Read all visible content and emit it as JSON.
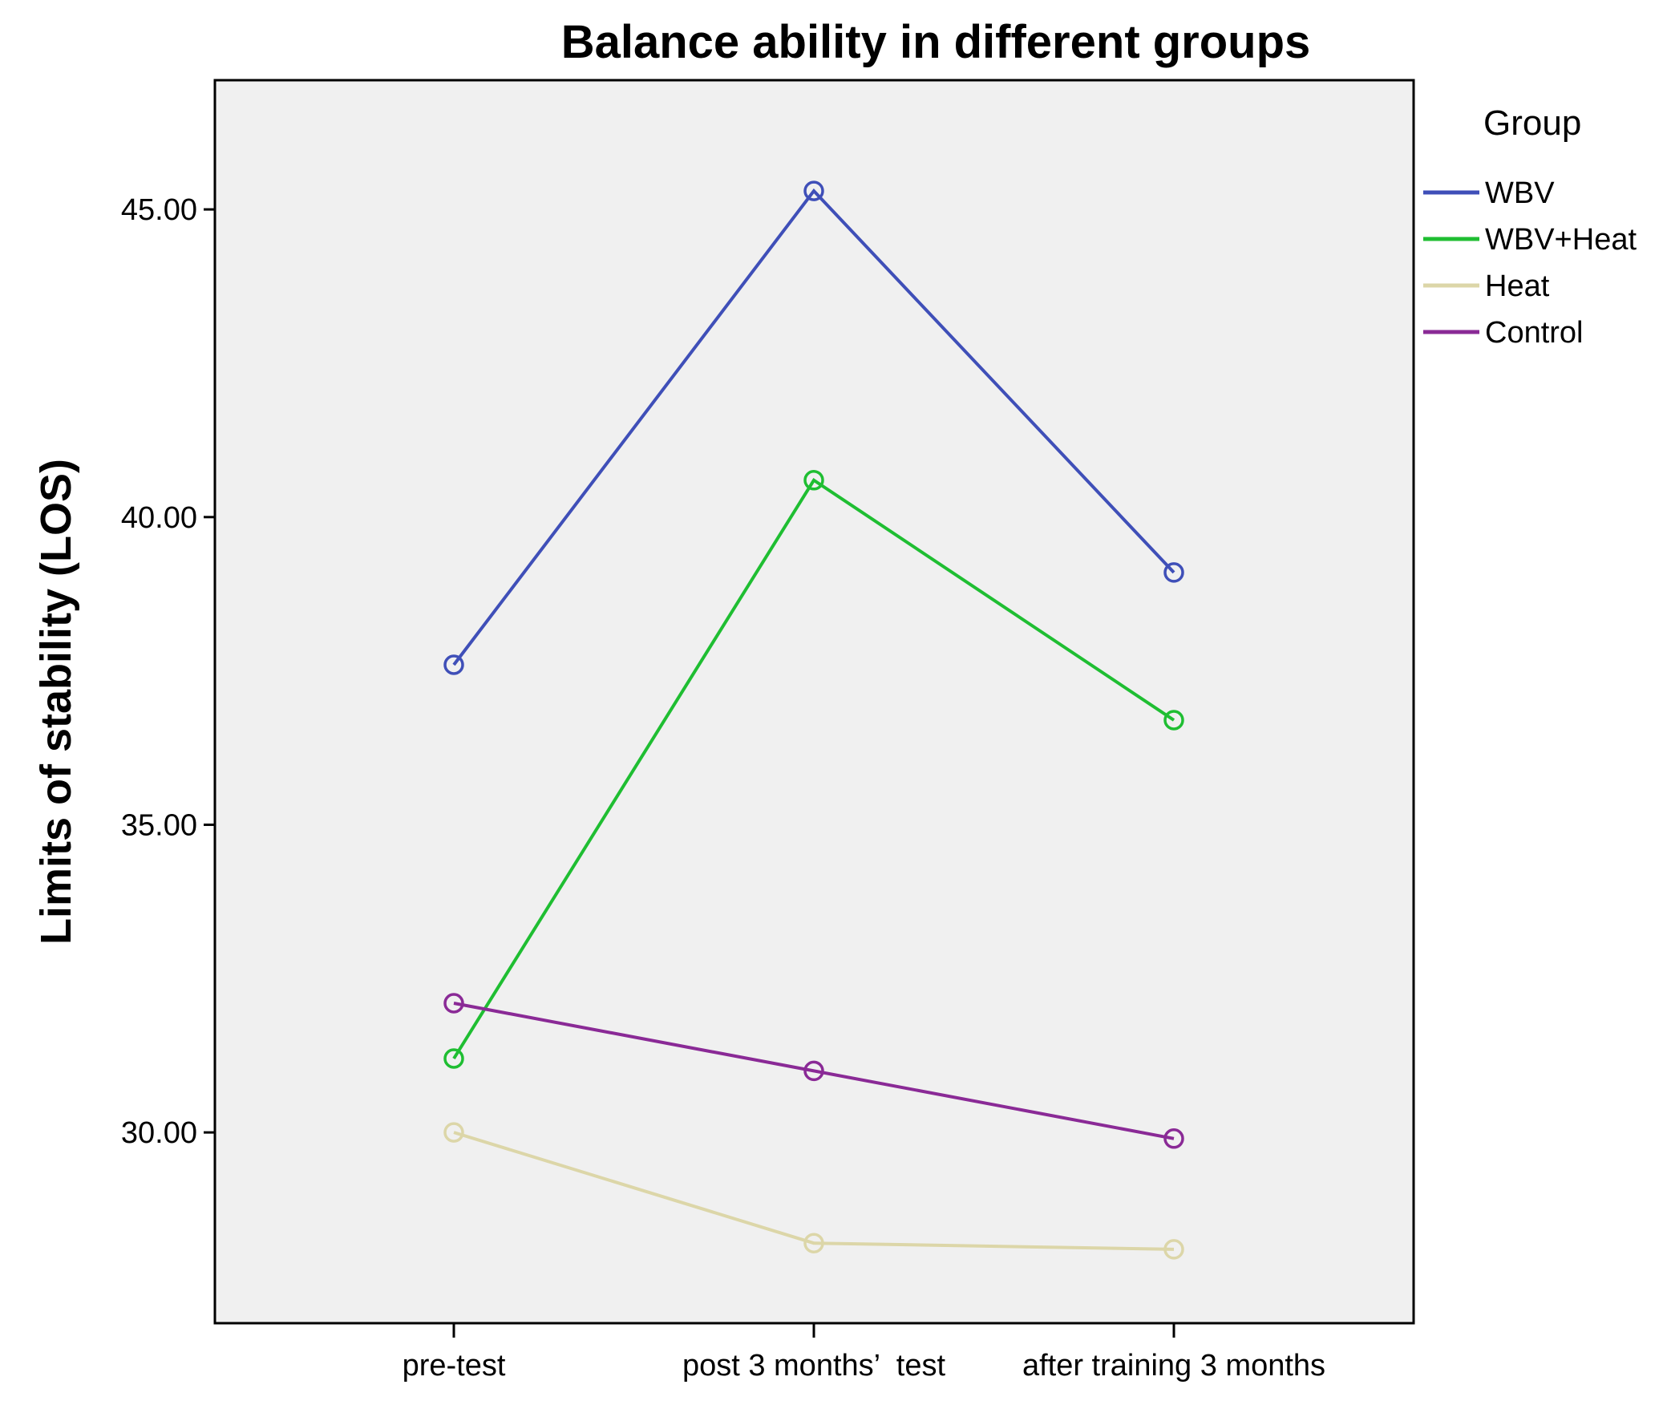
{
  "chart_data": {
    "type": "line",
    "title": "Balance ability in different groups",
    "xlabel": "",
    "ylabel": "Limits of stability (LOS)",
    "categories": [
      "pre-test",
      "post 3 months’  test",
      "after training 3 months"
    ],
    "yticks": [
      "30.00",
      "35.00",
      "40.00",
      "45.00"
    ],
    "ylim": [
      26.9,
      47.1
    ],
    "grid": false,
    "legend": {
      "title": "Group",
      "placement": "right"
    },
    "marker": "open-circle",
    "series": [
      {
        "name": "WBV",
        "color": "#3f4fb8",
        "values": [
          37.6,
          45.3,
          39.1
        ]
      },
      {
        "name": "WBV+Heat",
        "color": "#1fbe32",
        "values": [
          31.2,
          40.6,
          36.7
        ]
      },
      {
        "name": "Heat",
        "color": "#dcd6a8",
        "values": [
          30.0,
          28.2,
          28.1
        ]
      },
      {
        "name": "Control",
        "color": "#8a2a96",
        "values": [
          32.1,
          31.0,
          29.9
        ]
      }
    ],
    "colors": {
      "plot_background": "#f0f0f0",
      "frame": "#000000"
    }
  }
}
